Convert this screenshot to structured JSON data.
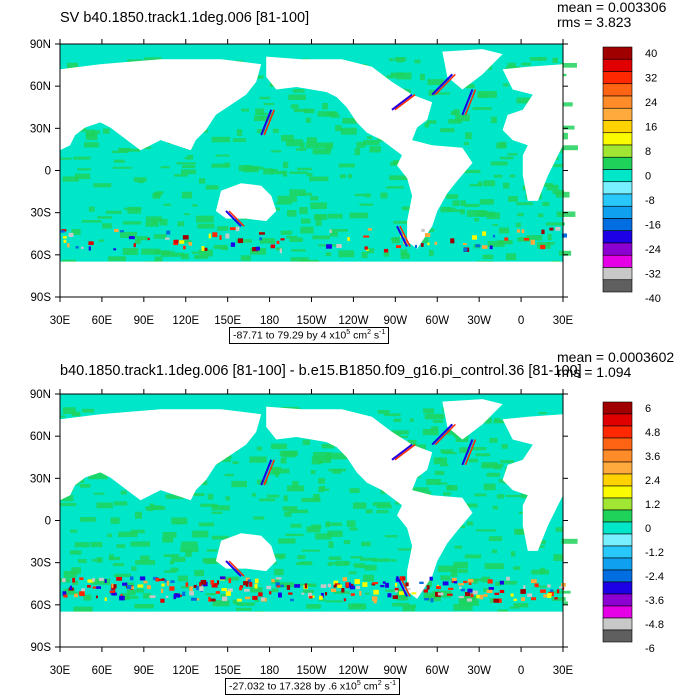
{
  "colors": {
    "levels": [
      "#5f5f5f",
      "#c8c8c8",
      "#e600e6",
      "#8c00d2",
      "#1e00e6",
      "#006ee1",
      "#10a0f0",
      "#28c8fa",
      "#78f0ff",
      "#00e6c8",
      "#1ed25a",
      "#a0e632",
      "#fafa00",
      "#ffd200",
      "#ffaa3c",
      "#ff8c28",
      "#ff6414",
      "#ff2800",
      "#e10000",
      "#a00000"
    ],
    "ocean": "#00e6c8",
    "ocean_alt": "#1ed25a",
    "land": "#ffffff"
  },
  "panels": [
    {
      "title": "SV b40.1850.track1.1deg.006 [81-100]",
      "mean_label": "mean = 0.003306",
      "rms_label": "rms = 3.823",
      "units_range": "-87.71 to 79.29 by 4 x10",
      "units_exp": "5",
      "units_tail": " cm",
      "units_sq": "2",
      "units_s": " s",
      "units_inv": "-1",
      "colorbar_labels": [
        "40",
        "32",
        "24",
        "16",
        "8",
        "0",
        "-8",
        "-16",
        "-24",
        "-32",
        "-40"
      ],
      "lat_labels": [
        "90N",
        "60N",
        "30N",
        "0",
        "30S",
        "60S",
        "90S"
      ],
      "lon_labels": [
        "30E",
        "60E",
        "90E",
        "120E",
        "150E",
        "180",
        "150W",
        "120W",
        "90W",
        "60W",
        "30W",
        "0",
        "30E"
      ]
    },
    {
      "title": "b40.1850.track1.1deg.006 [81-100] - b.e15.B1850.f09_g16.pi_control.36 [81-100]",
      "mean_label": "mean = 0.0003602",
      "rms_label": "rms = 1.094",
      "units_range": "-27.032 to 17.328 by .6 x10",
      "units_exp": "5",
      "units_tail": " cm",
      "units_sq": "2",
      "units_s": " s",
      "units_inv": "-1",
      "colorbar_labels": [
        "6",
        "4.8",
        "3.6",
        "2.4",
        "1.2",
        "0",
        "-1.2",
        "-2.4",
        "-3.6",
        "-4.8",
        "-6"
      ],
      "lat_labels": [
        "90N",
        "60N",
        "30N",
        "0",
        "30S",
        "60S",
        "90S"
      ],
      "lon_labels": [
        "30E",
        "60E",
        "90E",
        "120E",
        "150E",
        "180",
        "150W",
        "120W",
        "90W",
        "60W",
        "30W",
        "0",
        "30E"
      ]
    }
  ]
}
